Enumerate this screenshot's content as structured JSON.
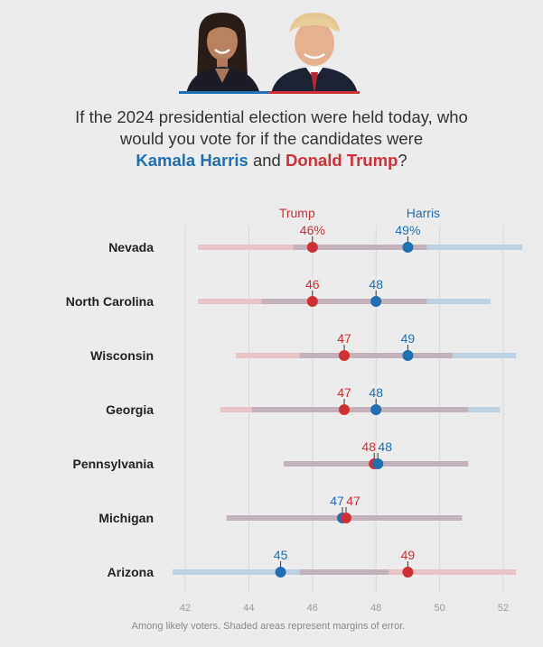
{
  "header": {
    "question_line1": "If the 2024 presidential election were held today, who",
    "question_line2": "would you vote for if the candidates were",
    "harris_name": "Kamala Harris",
    "and_text": "and",
    "trump_name": "Donald Trump",
    "question_end": "?"
  },
  "colors": {
    "harris": "#1f6fb2",
    "trump": "#d12f36",
    "harris_band": "#bcd2e3",
    "trump_band": "#e7c4c6",
    "overlap_band": "#c3b2bb",
    "background": "#ececec"
  },
  "chart_data": {
    "type": "dot-range",
    "legend": {
      "trump": "Trump",
      "harris": "Harris"
    },
    "xlim": [
      41,
      53
    ],
    "x_ticks": [
      42,
      44,
      46,
      48,
      50,
      52
    ],
    "states": [
      {
        "name": "Nevada",
        "trump": 46,
        "harris": 49,
        "trump_label": "46%",
        "harris_label": "49%",
        "trump_range": [
          42.4,
          49.6
        ],
        "harris_range": [
          45.4,
          52.6
        ]
      },
      {
        "name": "North Carolina",
        "trump": 46,
        "harris": 48,
        "trump_label": "46",
        "harris_label": "48",
        "trump_range": [
          42.4,
          49.6
        ],
        "harris_range": [
          44.4,
          51.6
        ]
      },
      {
        "name": "Wisconsin",
        "trump": 47,
        "harris": 49,
        "trump_label": "47",
        "harris_label": "49",
        "trump_range": [
          43.6,
          50.4
        ],
        "harris_range": [
          45.6,
          52.4
        ]
      },
      {
        "name": "Georgia",
        "trump": 47,
        "harris": 48,
        "trump_label": "47",
        "harris_label": "48",
        "trump_range": [
          43.1,
          50.9
        ],
        "harris_range": [
          44.1,
          51.9
        ]
      },
      {
        "name": "Pennsylvania",
        "trump": 48,
        "harris": 48,
        "trump_label": "48",
        "harris_label": "48",
        "trump_range": [
          45.1,
          50.9
        ],
        "harris_range": [
          45.1,
          50.9
        ]
      },
      {
        "name": "Michigan",
        "trump": 47,
        "harris": 47,
        "trump_label": "47",
        "harris_label": "47",
        "trump_range": [
          43.3,
          50.7
        ],
        "harris_range": [
          43.3,
          50.7
        ]
      },
      {
        "name": "Arizona",
        "trump": 49,
        "harris": 45,
        "trump_label": "49",
        "harris_label": "45",
        "trump_range": [
          45.6,
          52.4
        ],
        "harris_range": [
          41.6,
          48.4
        ]
      }
    ]
  },
  "footnote": "Among likely voters. Shaded areas represent margins of error."
}
